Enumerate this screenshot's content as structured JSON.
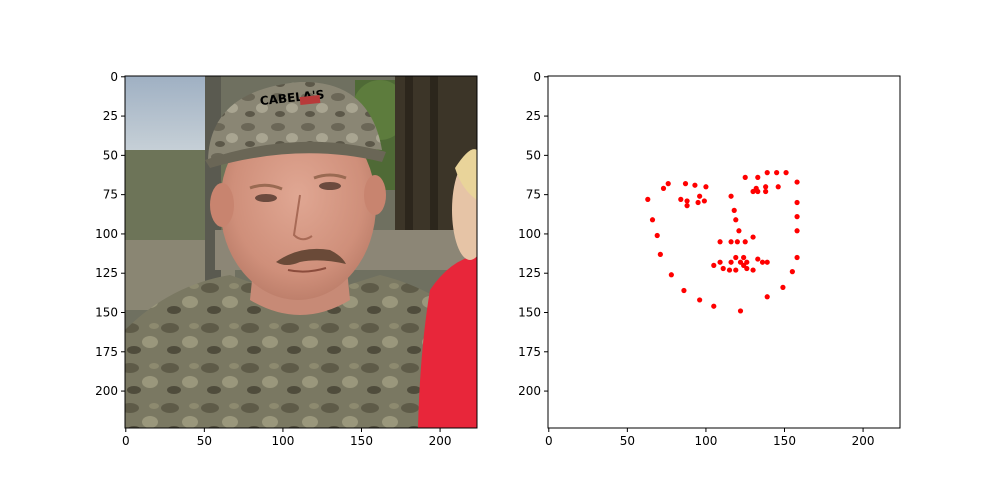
{
  "chart_data": [
    {
      "type": "image",
      "image_description": "Photo of a man in a camouflage cap and shirt; a child in red at the right edge",
      "xlim": [
        0,
        224
      ],
      "ylim": [
        224,
        0
      ],
      "xticks": [
        0,
        50,
        100,
        150,
        200
      ],
      "yticks": [
        0,
        25,
        50,
        75,
        100,
        125,
        150,
        175,
        200
      ],
      "cap_text": "CABELA'S"
    },
    {
      "type": "scatter",
      "marker_color": "#ff0000",
      "xlim": [
        0,
        224
      ],
      "ylim": [
        224,
        0
      ],
      "xticks": [
        0,
        50,
        100,
        150,
        200
      ],
      "yticks": [
        0,
        25,
        50,
        75,
        100,
        125,
        150,
        175,
        200
      ],
      "points": [
        [
          63,
          78
        ],
        [
          66,
          91
        ],
        [
          69,
          101
        ],
        [
          71,
          113
        ],
        [
          78,
          126
        ],
        [
          86,
          136
        ],
        [
          96,
          142
        ],
        [
          105,
          146
        ],
        [
          122,
          149
        ],
        [
          139,
          140
        ],
        [
          149,
          134
        ],
        [
          155,
          124
        ],
        [
          158,
          115
        ],
        [
          158,
          98
        ],
        [
          158,
          89
        ],
        [
          158,
          80
        ],
        [
          158,
          67
        ],
        [
          73,
          71
        ],
        [
          76,
          68
        ],
        [
          87,
          68
        ],
        [
          93,
          69
        ],
        [
          100,
          70
        ],
        [
          84,
          78
        ],
        [
          88,
          79
        ],
        [
          88,
          82
        ],
        [
          95,
          80
        ],
        [
          99,
          79
        ],
        [
          96,
          76
        ],
        [
          125,
          64
        ],
        [
          133,
          64
        ],
        [
          139,
          61
        ],
        [
          145,
          61
        ],
        [
          151,
          61
        ],
        [
          146,
          70
        ],
        [
          138,
          70
        ],
        [
          132,
          71
        ],
        [
          130,
          73
        ],
        [
          133,
          73
        ],
        [
          138,
          73
        ],
        [
          116,
          76
        ],
        [
          118,
          85
        ],
        [
          119,
          91
        ],
        [
          121,
          98
        ],
        [
          109,
          105
        ],
        [
          116,
          105
        ],
        [
          120,
          105
        ],
        [
          125,
          105
        ],
        [
          130,
          102
        ],
        [
          105,
          120
        ],
        [
          109,
          118
        ],
        [
          111,
          122
        ],
        [
          115,
          123
        ],
        [
          116,
          118
        ],
        [
          119,
          115
        ],
        [
          119,
          123
        ],
        [
          122,
          118
        ],
        [
          124,
          115
        ],
        [
          124,
          120
        ],
        [
          126,
          118
        ],
        [
          126,
          122
        ],
        [
          130,
          123
        ],
        [
          133,
          116
        ],
        [
          136,
          118
        ],
        [
          139,
          118
        ]
      ]
    }
  ]
}
